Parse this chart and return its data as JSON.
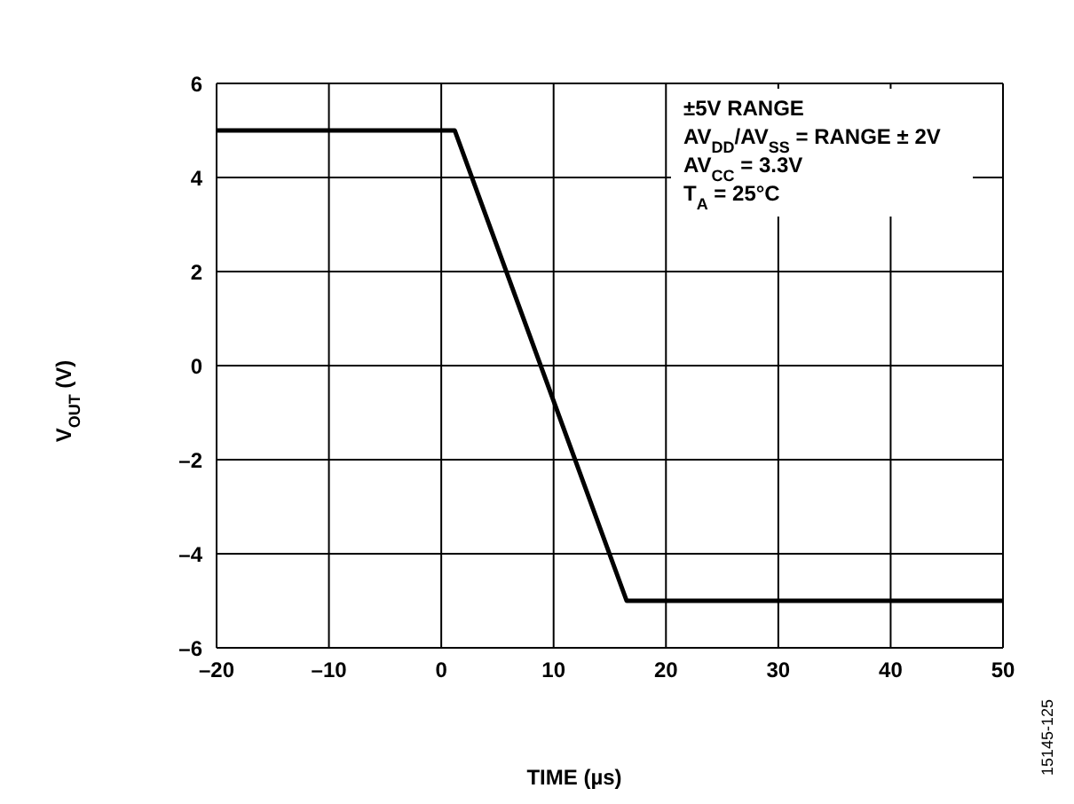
{
  "chart_data": {
    "type": "line",
    "xlabel": "TIME (µs)",
    "ylabel": "V$_{OUT}$ (V)",
    "x": [
      -20,
      1.2,
      16.5,
      50
    ],
    "series": [
      {
        "color": "#000000",
        "values": [
          5,
          5,
          -5,
          -5
        ]
      }
    ],
    "xlim": [
      -20,
      50
    ],
    "xticks": [
      {
        "value": -20,
        "label": "–20"
      },
      {
        "value": -10,
        "label": "–10"
      },
      0,
      10,
      20,
      30,
      40,
      50
    ],
    "ylim": [
      -6,
      6
    ],
    "yticks": [
      {
        "value": -6,
        "label": "–6"
      },
      {
        "value": -4,
        "label": "–4"
      },
      {
        "value": -2,
        "label": "–2"
      },
      0,
      2,
      4,
      6
    ],
    "grid": true,
    "marker": "none",
    "line_style": "solid",
    "legend": false,
    "annotations": [
      "±5V RANGE",
      "AV$_{DD}$/AV$_{SS}$ = RANGE ± 2V",
      "AV$_{CC}$ = 3.3V",
      "T$_{A}$ = 25°C",
      "15145-125"
    ]
  }
}
